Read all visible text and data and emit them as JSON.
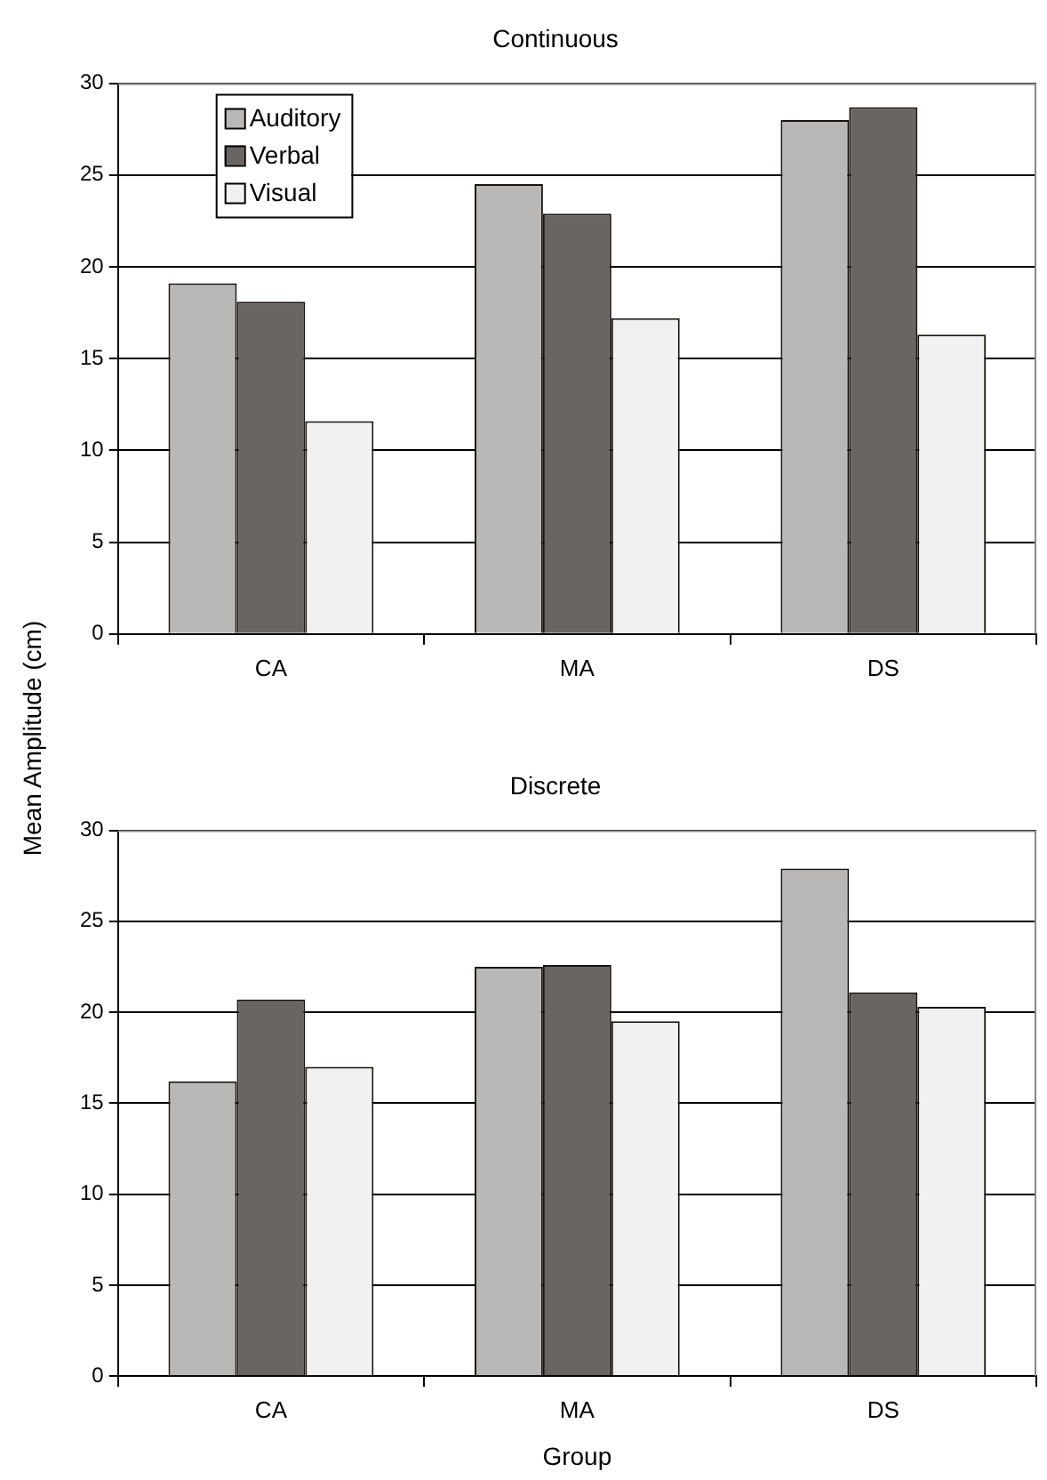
{
  "chart_data": [
    {
      "type": "bar",
      "title": "Continuous",
      "ylabel": "Mean Amplitude (cm)",
      "categories": [
        "CA",
        "MA",
        "DS"
      ],
      "series": [
        {
          "name": "Auditory",
          "color": "#b9b8b6",
          "values": [
            19.1,
            24.5,
            28.0
          ]
        },
        {
          "name": "Verbal",
          "color": "#6a6562",
          "values": [
            18.1,
            22.9,
            28.7
          ]
        },
        {
          "name": "Visual",
          "color": "#f1f1f1",
          "values": [
            11.6,
            17.2,
            16.3
          ]
        }
      ],
      "ylim": [
        0,
        30
      ],
      "yticks": [
        0,
        5,
        10,
        15,
        20,
        25,
        30
      ],
      "grid": "y",
      "legend": "top left"
    },
    {
      "type": "bar",
      "title": "Discrete",
      "xlabel": "Group",
      "categories": [
        "CA",
        "MA",
        "DS"
      ],
      "series": [
        {
          "color": "#b9b8b6",
          "values": [
            16.2,
            22.5,
            27.9
          ]
        },
        {
          "color": "#6a6562",
          "values": [
            20.7,
            22.6,
            21.1
          ]
        },
        {
          "color": "#f1f1f1",
          "values": [
            17.0,
            19.5,
            20.3
          ]
        }
      ],
      "ylim": [
        0,
        30
      ],
      "yticks": [
        0,
        5,
        10,
        15,
        20,
        25,
        30
      ],
      "grid": "y",
      "legend": false
    }
  ]
}
